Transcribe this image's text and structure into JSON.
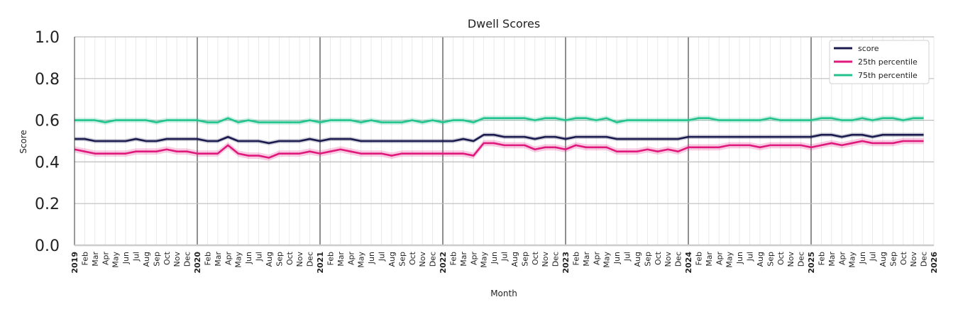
{
  "chart_data": {
    "type": "line",
    "title": "Dwell Scores",
    "xlabel": "Month",
    "ylabel": "Score",
    "ylim": [
      0,
      1
    ],
    "yticks": [
      "0.0",
      "0.2",
      "0.4",
      "0.6",
      "0.8",
      "1.0"
    ],
    "x_start": "2019-01",
    "x_end": "2026-01",
    "x_tick_labels": [
      "2019",
      "Feb",
      "Mar",
      "Apr",
      "May",
      "Jun",
      "Jul",
      "Aug",
      "Sep",
      "Oct",
      "Nov",
      "Dec",
      "2020",
      "Feb",
      "Mar",
      "Apr",
      "May",
      "Jun",
      "Jul",
      "Aug",
      "Sep",
      "Oct",
      "Nov",
      "Dec",
      "2021",
      "Feb",
      "Mar",
      "Apr",
      "May",
      "Jun",
      "Jul",
      "Aug",
      "Sep",
      "Oct",
      "Nov",
      "Dec",
      "2022",
      "Feb",
      "Mar",
      "Apr",
      "May",
      "Jun",
      "Jul",
      "Aug",
      "Sep",
      "Oct",
      "Nov",
      "Dec",
      "2023",
      "Feb",
      "Mar",
      "Apr",
      "May",
      "Jun",
      "Jul",
      "Aug",
      "Sep",
      "Oct",
      "Nov",
      "Dec",
      "2024",
      "Feb",
      "Mar",
      "Apr",
      "May",
      "Jun",
      "Jul",
      "Aug",
      "Sep",
      "Oct",
      "Nov",
      "Dec",
      "2025",
      "Feb",
      "Mar",
      "Apr",
      "May",
      "Jun",
      "Jul",
      "Aug",
      "Sep",
      "Oct",
      "Nov",
      "Dec",
      "2026"
    ],
    "year_boundaries": [
      "2020",
      "2021",
      "2022",
      "2023",
      "2024",
      "2025"
    ],
    "grid": true,
    "legend_position": "top-right",
    "series": [
      {
        "name": "score",
        "color": "#1a1a4e",
        "values": [
          0.51,
          0.51,
          0.5,
          0.5,
          0.5,
          0.5,
          0.51,
          0.5,
          0.5,
          0.51,
          0.51,
          0.51,
          0.51,
          0.5,
          0.5,
          0.52,
          0.5,
          0.5,
          0.5,
          0.49,
          0.5,
          0.5,
          0.5,
          0.51,
          0.5,
          0.51,
          0.51,
          0.51,
          0.5,
          0.5,
          0.5,
          0.5,
          0.5,
          0.5,
          0.5,
          0.5,
          0.5,
          0.5,
          0.51,
          0.5,
          0.53,
          0.53,
          0.52,
          0.52,
          0.52,
          0.51,
          0.52,
          0.52,
          0.51,
          0.52,
          0.52,
          0.52,
          0.52,
          0.51,
          0.51,
          0.51,
          0.51,
          0.51,
          0.51,
          0.51,
          0.52,
          0.52,
          0.52,
          0.52,
          0.52,
          0.52,
          0.52,
          0.52,
          0.52,
          0.52,
          0.52,
          0.52,
          0.52,
          0.53,
          0.53,
          0.52,
          0.53,
          0.53,
          0.52,
          0.53,
          0.53,
          0.53,
          0.53,
          0.53
        ],
        "band": 0.01
      },
      {
        "name": "25th percentile",
        "color": "#e0197d",
        "values": [
          0.46,
          0.45,
          0.44,
          0.44,
          0.44,
          0.44,
          0.45,
          0.45,
          0.45,
          0.46,
          0.45,
          0.45,
          0.44,
          0.44,
          0.44,
          0.48,
          0.44,
          0.43,
          0.43,
          0.42,
          0.44,
          0.44,
          0.44,
          0.45,
          0.44,
          0.45,
          0.46,
          0.45,
          0.44,
          0.44,
          0.44,
          0.43,
          0.44,
          0.44,
          0.44,
          0.44,
          0.44,
          0.44,
          0.44,
          0.43,
          0.49,
          0.49,
          0.48,
          0.48,
          0.48,
          0.46,
          0.47,
          0.47,
          0.46,
          0.48,
          0.47,
          0.47,
          0.47,
          0.45,
          0.45,
          0.45,
          0.46,
          0.45,
          0.46,
          0.45,
          0.47,
          0.47,
          0.47,
          0.47,
          0.48,
          0.48,
          0.48,
          0.47,
          0.48,
          0.48,
          0.48,
          0.48,
          0.47,
          0.48,
          0.49,
          0.48,
          0.49,
          0.5,
          0.49,
          0.49,
          0.49,
          0.5,
          0.5,
          0.5
        ],
        "band": 0.015
      },
      {
        "name": "75th percentile",
        "color": "#22c38e",
        "values": [
          0.6,
          0.6,
          0.6,
          0.59,
          0.6,
          0.6,
          0.6,
          0.6,
          0.59,
          0.6,
          0.6,
          0.6,
          0.6,
          0.59,
          0.59,
          0.61,
          0.59,
          0.6,
          0.59,
          0.59,
          0.59,
          0.59,
          0.59,
          0.6,
          0.59,
          0.6,
          0.6,
          0.6,
          0.59,
          0.6,
          0.59,
          0.59,
          0.59,
          0.6,
          0.59,
          0.6,
          0.59,
          0.6,
          0.6,
          0.59,
          0.61,
          0.61,
          0.61,
          0.61,
          0.61,
          0.6,
          0.61,
          0.61,
          0.6,
          0.61,
          0.61,
          0.6,
          0.61,
          0.59,
          0.6,
          0.6,
          0.6,
          0.6,
          0.6,
          0.6,
          0.6,
          0.61,
          0.61,
          0.6,
          0.6,
          0.6,
          0.6,
          0.6,
          0.61,
          0.6,
          0.6,
          0.6,
          0.6,
          0.61,
          0.61,
          0.6,
          0.6,
          0.61,
          0.6,
          0.61,
          0.61,
          0.6,
          0.61,
          0.61
        ],
        "band": 0.012
      }
    ]
  }
}
